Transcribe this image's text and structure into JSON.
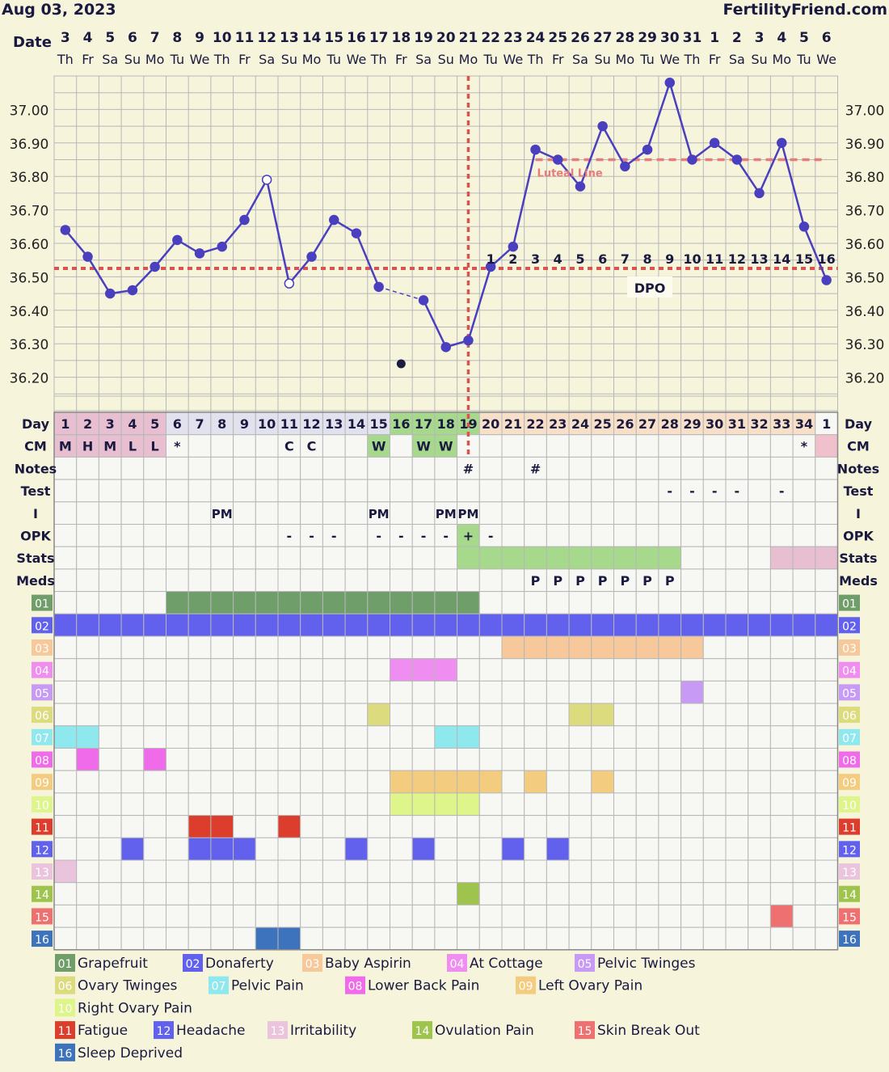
{
  "header": {
    "date": "Aug 03, 2023",
    "brand": "FertilityFriend.com"
  },
  "labels": {
    "date": "Date",
    "day": "Day",
    "cm": "CM",
    "notes": "Notes",
    "test": "Test",
    "intercourse": "I",
    "opk": "OPK",
    "stats": "Stats",
    "meds": "Meds",
    "dpo": "DPO",
    "luteal_line": "Luteal Line"
  },
  "colors": {
    "chart_bg": "#f7f4dc",
    "grid": "#b7b7b7",
    "temp_line": "#4a3fbf",
    "coverline": "#d9534f",
    "ovulation_line": "#d9534f",
    "luteal_line": "#e67c7c",
    "cell_bg": "#f7f7f4",
    "menses": "#e8bfd0",
    "fertile": "#a6d98b",
    "luteal_phase": "#f8e0c8",
    "day_bg": "#e2e2ee",
    "next_cycle": "#f0c0cc"
  },
  "chart_data": {
    "type": "line",
    "title": "",
    "ylim": [
      36.1,
      37.1
    ],
    "yticks": [
      "37.00",
      "36.90",
      "36.80",
      "36.70",
      "36.60",
      "36.50",
      "36.40",
      "36.30",
      "36.20"
    ],
    "ytick_values": [
      37.0,
      36.9,
      36.8,
      36.7,
      36.6,
      36.5,
      36.4,
      36.3,
      36.2
    ],
    "dates": [
      "3",
      "4",
      "5",
      "6",
      "7",
      "8",
      "9",
      "10",
      "11",
      "12",
      "13",
      "14",
      "15",
      "16",
      "17",
      "18",
      "19",
      "20",
      "21",
      "22",
      "23",
      "24",
      "25",
      "26",
      "27",
      "28",
      "29",
      "30",
      "31",
      "1",
      "2",
      "3",
      "4",
      "5",
      "6"
    ],
    "weekdays": [
      "Th",
      "Fr",
      "Sa",
      "Su",
      "Mo",
      "Tu",
      "We",
      "Th",
      "Fr",
      "Sa",
      "Su",
      "Mo",
      "Tu",
      "We",
      "Th",
      "Fr",
      "Sa",
      "Su",
      "Mo",
      "Tu",
      "We",
      "Th",
      "Fr",
      "Sa",
      "Su",
      "Mo",
      "Tu",
      "We",
      "Th",
      "Fr",
      "Sa",
      "Su",
      "Mo",
      "Tu",
      "We"
    ],
    "temperatures": [
      36.64,
      36.56,
      36.45,
      36.46,
      36.53,
      36.61,
      36.57,
      36.59,
      36.67,
      36.79,
      36.48,
      36.56,
      36.67,
      36.63,
      36.47,
      null,
      36.43,
      36.29,
      36.31,
      36.53,
      36.59,
      36.88,
      36.85,
      36.77,
      36.95,
      36.83,
      36.88,
      37.08,
      36.85,
      36.9,
      36.85,
      36.75,
      36.9,
      36.65,
      36.49
    ],
    "open_points": [
      9,
      10
    ],
    "discarded_points": [
      {
        "day_index": 15,
        "value": 36.24
      }
    ],
    "coverline": 36.525,
    "luteal_line": 36.85,
    "luteal_start_index": 21,
    "ovulation_day_index": 18,
    "dpo": [
      "1",
      "2",
      "3",
      "4",
      "5",
      "6",
      "7",
      "8",
      "9",
      "10",
      "11",
      "12",
      "13",
      "14",
      "15",
      "16"
    ],
    "dpo_start_index": 19,
    "cycle_days": [
      "1",
      "2",
      "3",
      "4",
      "5",
      "6",
      "7",
      "8",
      "9",
      "10",
      "11",
      "12",
      "13",
      "14",
      "15",
      "16",
      "17",
      "18",
      "19",
      "20",
      "21",
      "22",
      "23",
      "24",
      "25",
      "26",
      "27",
      "28",
      "29",
      "30",
      "31",
      "32",
      "33",
      "34",
      "1"
    ],
    "cm": [
      "M",
      "H",
      "M",
      "L",
      "L",
      "*",
      "",
      "",
      "",
      "",
      "C",
      "C",
      "",
      "",
      "W",
      "",
      "W",
      "W",
      "",
      "",
      "",
      "",
      "",
      "",
      "",
      "",
      "",
      "",
      "",
      "",
      "",
      "",
      "",
      "*",
      ""
    ],
    "notes": [
      "",
      "",
      "",
      "",
      "",
      "",
      "",
      "",
      "",
      "",
      "",
      "",
      "",
      "",
      "",
      "",
      "",
      "",
      "#",
      "",
      "",
      "#",
      "",
      "",
      "",
      "",
      "",
      "",
      "",
      "",
      "",
      "",
      "",
      "",
      ""
    ],
    "test": [
      "",
      "",
      "",
      "",
      "",
      "",
      "",
      "",
      "",
      "",
      "",
      "",
      "",
      "",
      "",
      "",
      "",
      "",
      "",
      "",
      "",
      "",
      "",
      "",
      "",
      "",
      "",
      "-",
      "-",
      "-",
      "-",
      "",
      "-",
      "",
      ""
    ],
    "intercourse": [
      "",
      "",
      "",
      "",
      "",
      "",
      "",
      "PM",
      "",
      "",
      "",
      "",
      "",
      "",
      "PM",
      "",
      "",
      "PM",
      "PM",
      "",
      "",
      "",
      "",
      "",
      "",
      "",
      "",
      "",
      "",
      "",
      "",
      "",
      "",
      "",
      ""
    ],
    "opk": [
      "",
      "",
      "",
      "",
      "",
      "",
      "",
      "",
      "",
      "",
      "-",
      "-",
      "-",
      "",
      "-",
      "-",
      "-",
      "-",
      "+",
      "-",
      "",
      "",
      "",
      "",
      "",
      "",
      "",
      "",
      "",
      "",
      "",
      "",
      "",
      "",
      ""
    ],
    "meds": [
      "",
      "",
      "",
      "",
      "",
      "",
      "",
      "",
      "",
      "",
      "",
      "",
      "",
      "",
      "",
      "",
      "",
      "",
      "",
      "",
      "",
      "P",
      "P",
      "P",
      "P",
      "P",
      "P",
      "P",
      "",
      "",
      "",
      "",
      "",
      "",
      ""
    ],
    "stats_fertile": [
      18,
      27
    ],
    "stats_next": [
      32,
      34
    ],
    "symptoms": [
      {
        "num": "01",
        "label": "Grapefruit",
        "color": "#6f9e6a",
        "days": [
          5,
          6,
          7,
          8,
          9,
          10,
          11,
          12,
          13,
          14,
          15,
          16,
          17,
          18
        ]
      },
      {
        "num": "02",
        "label": "Donaferty",
        "color": "#6161ee",
        "days": [
          0,
          1,
          2,
          3,
          4,
          5,
          6,
          7,
          8,
          9,
          10,
          11,
          12,
          13,
          14,
          15,
          16,
          17,
          18,
          19,
          20,
          21,
          22,
          23,
          24,
          25,
          26,
          27,
          28,
          29,
          30,
          31,
          32,
          33,
          34
        ]
      },
      {
        "num": "03",
        "label": "Baby Aspirin",
        "color": "#f6c89a",
        "days": [
          20,
          21,
          22,
          23,
          24,
          25,
          26,
          27,
          28
        ]
      },
      {
        "num": "04",
        "label": "At Cottage",
        "color": "#ef8ef0",
        "days": [
          15,
          16,
          17
        ]
      },
      {
        "num": "05",
        "label": "Pelvic Twinges",
        "color": "#c79af5",
        "days": [
          28
        ]
      },
      {
        "num": "06",
        "label": "Ovary Twinges",
        "color": "#dcdb7e",
        "days": [
          14,
          23,
          24
        ]
      },
      {
        "num": "07",
        "label": "Pelvic Pain",
        "color": "#8ee8ee",
        "days": [
          0,
          1,
          17,
          18
        ]
      },
      {
        "num": "08",
        "label": "Lower Back Pain",
        "color": "#ef6bea",
        "days": [
          1,
          4
        ]
      },
      {
        "num": "09",
        "label": "Left Ovary Pain",
        "color": "#f4cc80",
        "days": [
          15,
          16,
          17,
          18,
          19,
          21,
          24
        ]
      },
      {
        "num": "10",
        "label": "Right Ovary Pain",
        "color": "#ddf58a",
        "days": [
          15,
          16,
          17,
          18
        ]
      },
      {
        "num": "11",
        "label": "Fatigue",
        "color": "#dd3d2c",
        "days": [
          6,
          7,
          10
        ]
      },
      {
        "num": "12",
        "label": "Headache",
        "color": "#6161ee",
        "days": [
          3,
          6,
          7,
          8,
          13,
          16,
          20,
          22
        ]
      },
      {
        "num": "13",
        "label": "Irritability",
        "color": "#eac4dc",
        "days": [
          0
        ]
      },
      {
        "num": "14",
        "label": "Ovulation Pain",
        "color": "#9ec44e",
        "days": [
          18
        ]
      },
      {
        "num": "15",
        "label": "Skin Break Out",
        "color": "#ee7070",
        "days": [
          32
        ]
      },
      {
        "num": "16",
        "label": "Sleep Deprived",
        "color": "#3d72bd",
        "days": [
          9,
          10
        ]
      }
    ]
  }
}
